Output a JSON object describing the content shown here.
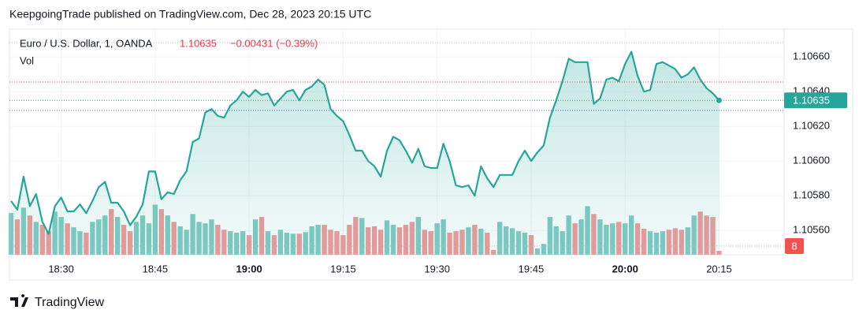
{
  "header": {
    "published": "KeepgoingTrade published on TradingView.com, Dec 28, 2023 20:15 UTC",
    "last": "1.10635",
    "change": "−0.00431 (−0.39%)"
  },
  "footer": {
    "brand": "TradingView"
  },
  "chart_data": {
    "type": "line",
    "grid": true,
    "x": [
      "18:22",
      "18:23",
      "18:24",
      "18:25",
      "18:26",
      "18:27",
      "18:28",
      "18:29",
      "18:30",
      "18:31",
      "18:32",
      "18:33",
      "18:34",
      "18:35",
      "18:36",
      "18:37",
      "18:38",
      "18:39",
      "18:40",
      "18:41",
      "18:42",
      "18:43",
      "18:44",
      "18:45",
      "18:46",
      "18:47",
      "18:48",
      "18:49",
      "18:50",
      "18:51",
      "18:52",
      "18:53",
      "18:54",
      "18:55",
      "18:56",
      "18:57",
      "18:58",
      "18:59",
      "19:00",
      "19:01",
      "19:02",
      "19:03",
      "19:04",
      "19:05",
      "19:06",
      "19:07",
      "19:08",
      "19:09",
      "19:10",
      "19:11",
      "19:12",
      "19:13",
      "19:14",
      "19:15",
      "19:16",
      "19:17",
      "19:18",
      "19:19",
      "19:20",
      "19:21",
      "19:22",
      "19:23",
      "19:24",
      "19:25",
      "19:26",
      "19:27",
      "19:28",
      "19:29",
      "19:30",
      "19:31",
      "19:32",
      "19:33",
      "19:34",
      "19:35",
      "19:36",
      "19:37",
      "19:38",
      "19:39",
      "19:40",
      "19:41",
      "19:42",
      "19:43",
      "19:44",
      "19:45",
      "19:46",
      "19:47",
      "19:48",
      "19:49",
      "19:50",
      "19:51",
      "19:52",
      "19:53",
      "19:54",
      "19:55",
      "19:56",
      "19:57",
      "19:58",
      "19:59",
      "20:00",
      "20:01",
      "20:02",
      "20:03",
      "20:04",
      "20:05",
      "20:06",
      "20:07",
      "20:08",
      "20:09",
      "20:10",
      "20:11",
      "20:12",
      "20:13",
      "20:14",
      "20:15"
    ],
    "series": [
      {
        "name": "Euro / U.S. Dollar, 1, OANDA",
        "color": "#26a69a",
        "values": [
          1.10577,
          1.10572,
          1.10591,
          1.10574,
          1.10581,
          1.10565,
          1.10558,
          1.10574,
          1.10579,
          1.10571,
          1.10571,
          1.10575,
          1.1057,
          1.10577,
          1.10585,
          1.10588,
          1.10576,
          1.10576,
          1.10571,
          1.10563,
          1.10568,
          1.10575,
          1.10594,
          1.10594,
          1.10578,
          1.10582,
          1.10581,
          1.10589,
          1.10594,
          1.10611,
          1.10613,
          1.10628,
          1.1063,
          1.10626,
          1.10625,
          1.10632,
          1.10635,
          1.1064,
          1.10637,
          1.10641,
          1.10638,
          1.10639,
          1.10632,
          1.10636,
          1.1064,
          1.10641,
          1.10635,
          1.10641,
          1.10643,
          1.10647,
          1.10644,
          1.1063,
          1.10626,
          1.10623,
          1.10615,
          1.10606,
          1.10606,
          1.106,
          1.10597,
          1.10591,
          1.10606,
          1.10614,
          1.10612,
          1.10606,
          1.10599,
          1.10607,
          1.10597,
          1.10596,
          1.10596,
          1.1061,
          1.106,
          1.10586,
          1.10585,
          1.10586,
          1.1058,
          1.10597,
          1.1059,
          1.10585,
          1.10592,
          1.10592,
          1.10592,
          1.106,
          1.10606,
          1.106,
          1.10605,
          1.10609,
          1.10625,
          1.10635,
          1.10646,
          1.10659,
          1.10657,
          1.10657,
          1.10657,
          1.10633,
          1.10636,
          1.10647,
          1.10648,
          1.10646,
          1.10656,
          1.10663,
          1.10649,
          1.1064,
          1.10641,
          1.10656,
          1.10657,
          1.10655,
          1.10653,
          1.10648,
          1.1065,
          1.10654,
          1.10647,
          1.10642,
          1.10639,
          1.10635
        ]
      },
      {
        "name": "Vol",
        "type": "bar",
        "axis": "y2",
        "up_color": "#80cbc4",
        "down_color": "#ef9a9a",
        "badge_color": "#ef5350",
        "values": [
          85,
          72,
          96,
          80,
          67,
          61,
          48,
          88,
          77,
          64,
          56,
          48,
          45,
          67,
          72,
          80,
          93,
          77,
          61,
          48,
          67,
          80,
          64,
          102,
          93,
          80,
          67,
          58,
          51,
          83,
          67,
          64,
          72,
          61,
          51,
          48,
          45,
          48,
          40,
          72,
          77,
          48,
          40,
          51,
          45,
          43,
          43,
          46,
          58,
          61,
          61,
          51,
          48,
          40,
          61,
          77,
          75,
          56,
          58,
          51,
          70,
          61,
          56,
          61,
          67,
          77,
          51,
          48,
          64,
          72,
          45,
          48,
          51,
          56,
          61,
          53,
          45,
          10,
          67,
          58,
          54,
          48,
          45,
          40,
          13,
          22,
          77,
          58,
          48,
          80,
          64,
          72,
          99,
          83,
          72,
          61,
          64,
          67,
          64,
          80,
          64,
          53,
          48,
          45,
          48,
          51,
          54,
          51,
          56,
          80,
          88,
          80,
          77,
          8
        ]
      }
    ],
    "xlim": [
      "18:22",
      "20:25"
    ],
    "xticks": [
      "18:30",
      "18:45",
      "19:00",
      "19:15",
      "19:30",
      "19:45",
      "20:00",
      "20:15"
    ],
    "ylim": [
      1.10546,
      1.10676
    ],
    "yticks": [
      {
        "value": 1.1056,
        "label": "1.10560"
      },
      {
        "value": 1.1058,
        "label": "1.10580"
      },
      {
        "value": 1.106,
        "label": "1.10600"
      },
      {
        "value": 1.1062,
        "label": "1.10620"
      },
      {
        "value": 1.1064,
        "label": "1.10640"
      },
      {
        "value": 1.1066,
        "label": "1.10660"
      }
    ],
    "y2lim": [
      0,
      460
    ]
  }
}
